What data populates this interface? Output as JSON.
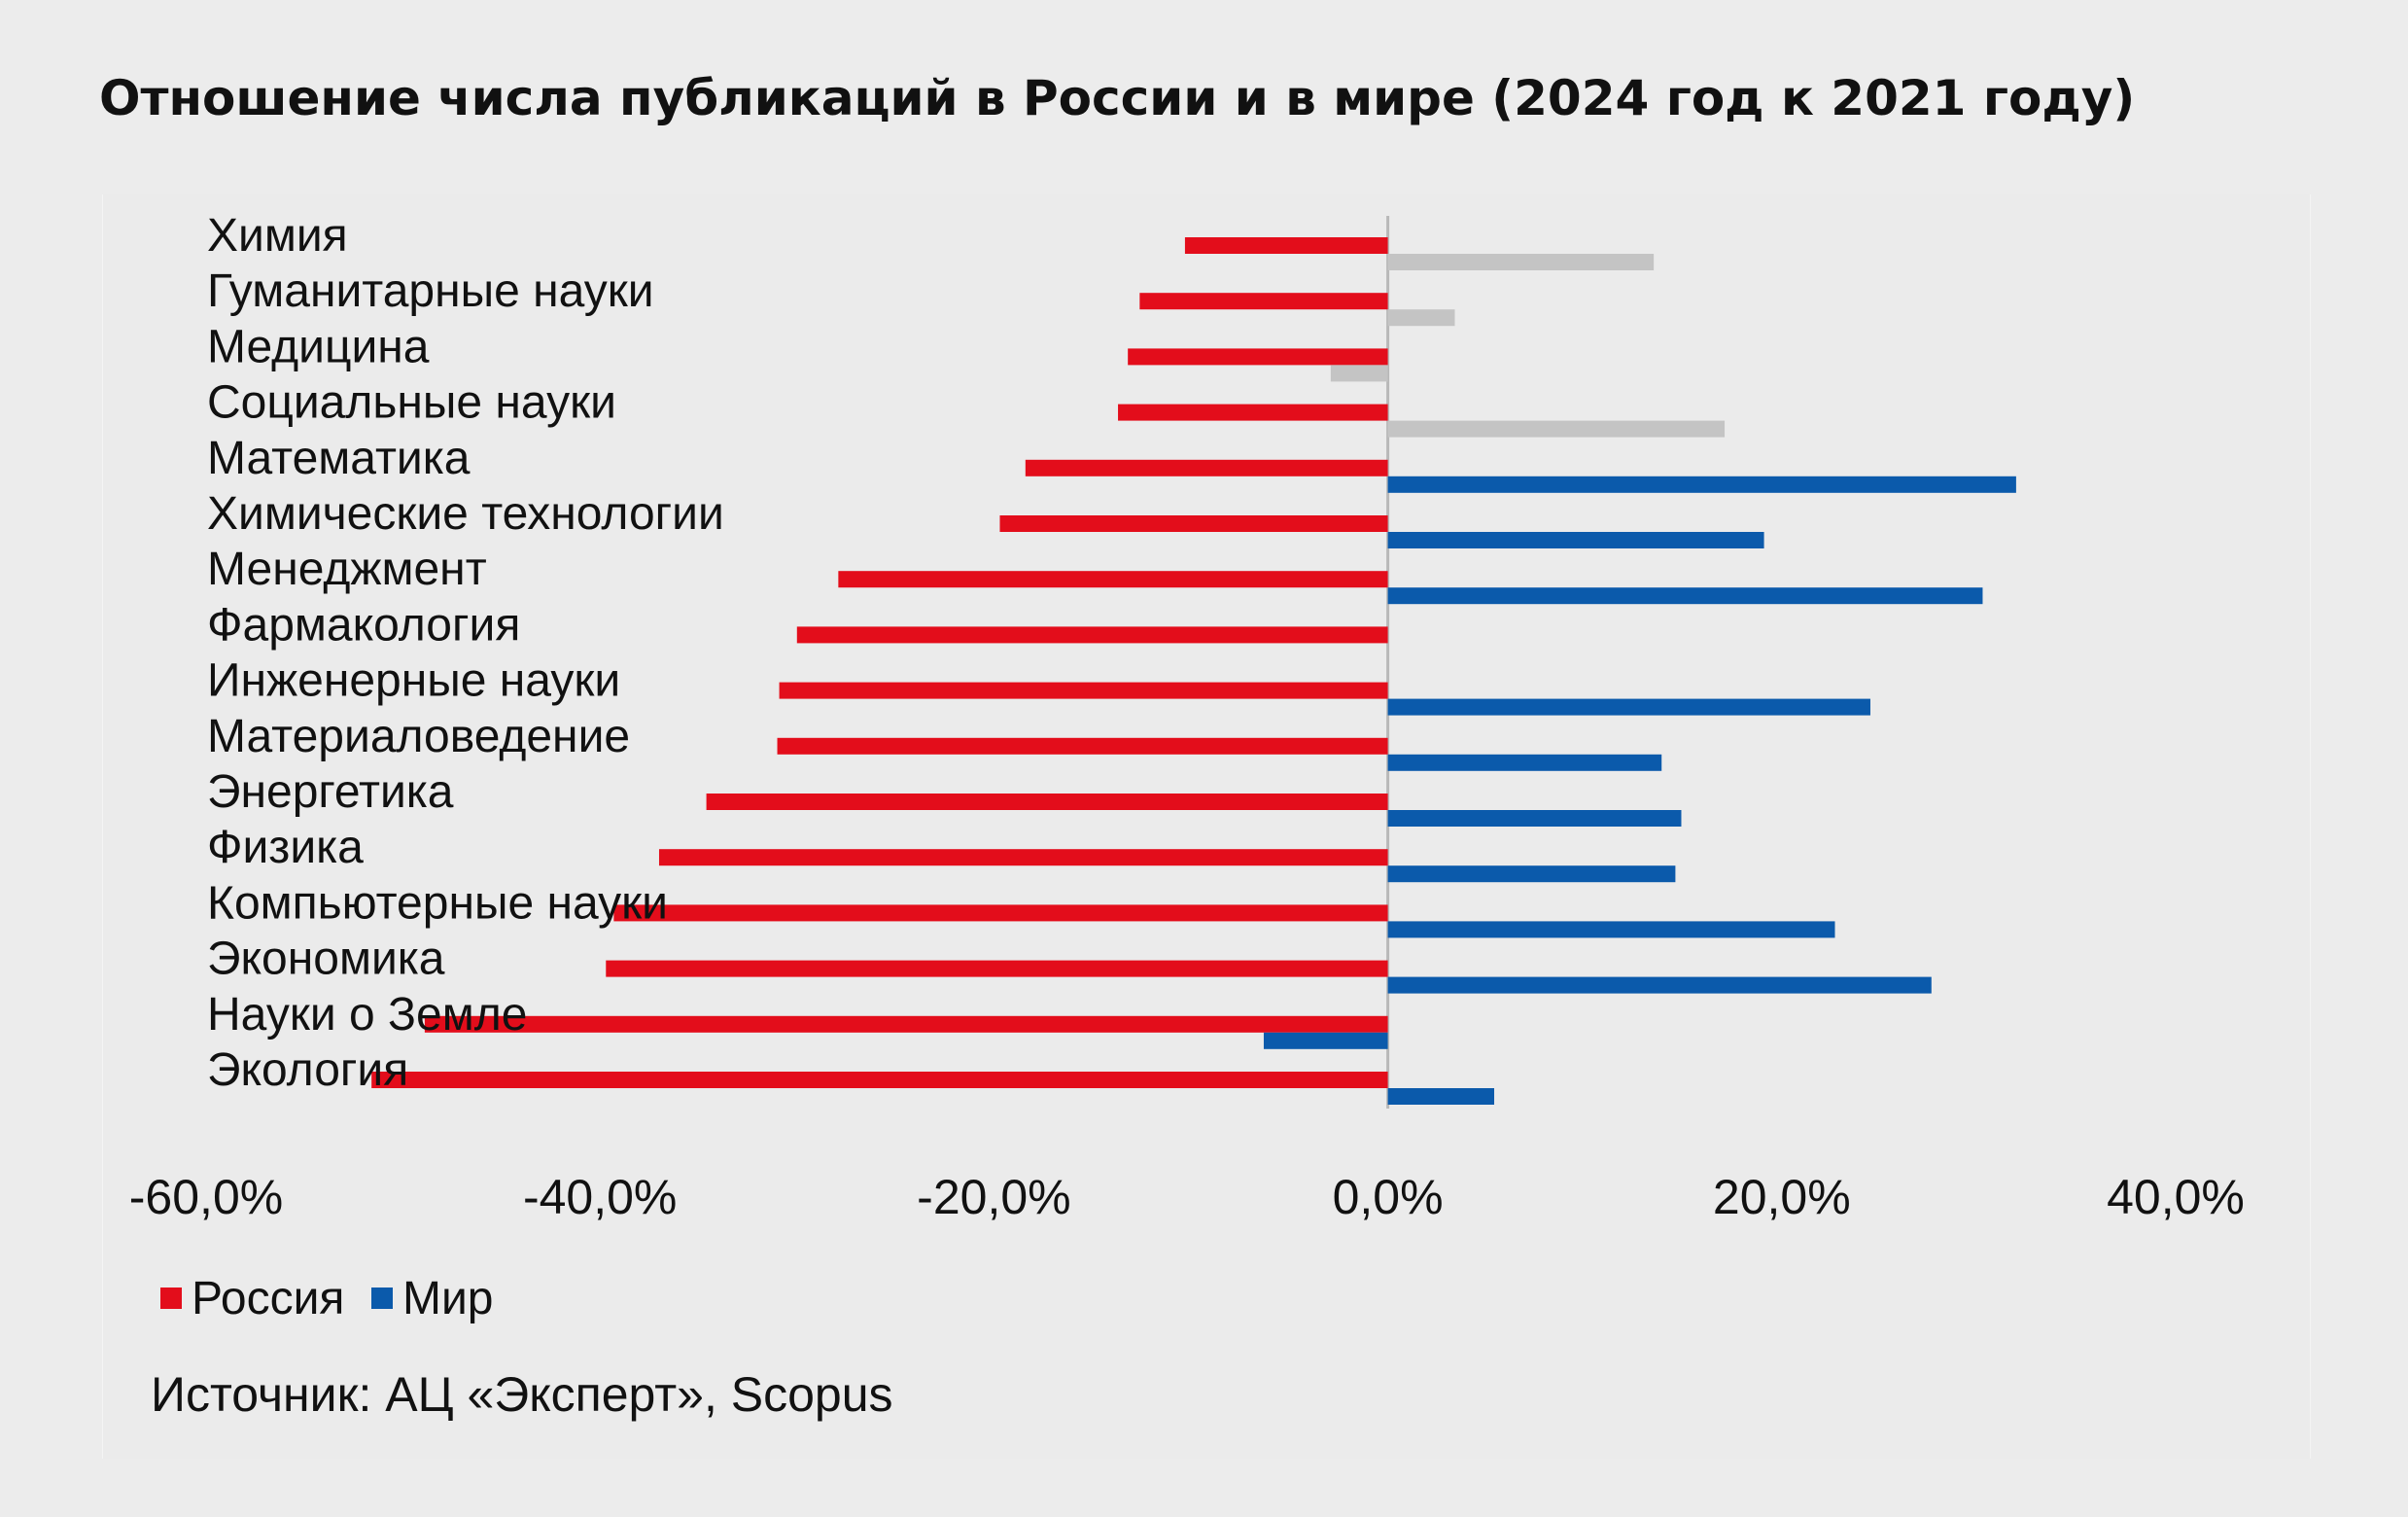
{
  "chart_data": {
    "type": "bar",
    "orientation": "horizontal",
    "title": "Отношение числа публикаций в России и в мире (2024 год к 2021 году)",
    "categories": [
      "Химия",
      "Гуманитарные науки",
      "Медицина",
      "Социальные науки",
      "Математика",
      "Химические технологии",
      "Менеджмент",
      "Фармакология",
      "Инженерные науки",
      "Материаловедение",
      "Энергетика",
      "Физика",
      "Компьютерные науки",
      "Экономика",
      "Науки о Земле",
      "Экология"
    ],
    "series": [
      {
        "name": "Россия",
        "color": "#e30d1b",
        "values": [
          -10.3,
          -12.6,
          -13.2,
          -13.7,
          -18.4,
          -19.7,
          -27.9,
          -30.0,
          -30.9,
          -31.0,
          -34.6,
          -37.0,
          -39.3,
          -39.7,
          -48.9,
          -51.6
        ]
      },
      {
        "name": "Мир",
        "color": "#0b5aab",
        "values": [
          13.5,
          3.4,
          -2.9,
          17.1,
          31.9,
          19.1,
          30.2,
          0.0,
          24.5,
          13.9,
          14.9,
          14.6,
          22.7,
          27.6,
          -6.3,
          5.4
        ]
      }
    ],
    "xlim": [
      -60,
      40
    ],
    "xticks": [
      "-60,0%",
      "-40,0%",
      "-20,0%",
      "0,0%",
      "20,0%",
      "40,0%"
    ],
    "legend": "bottom-left",
    "grid": false
  },
  "legend": {
    "russia": "Россия",
    "world": "Мир"
  },
  "source": "Источник: АЦ «Эксперт», Scopus"
}
